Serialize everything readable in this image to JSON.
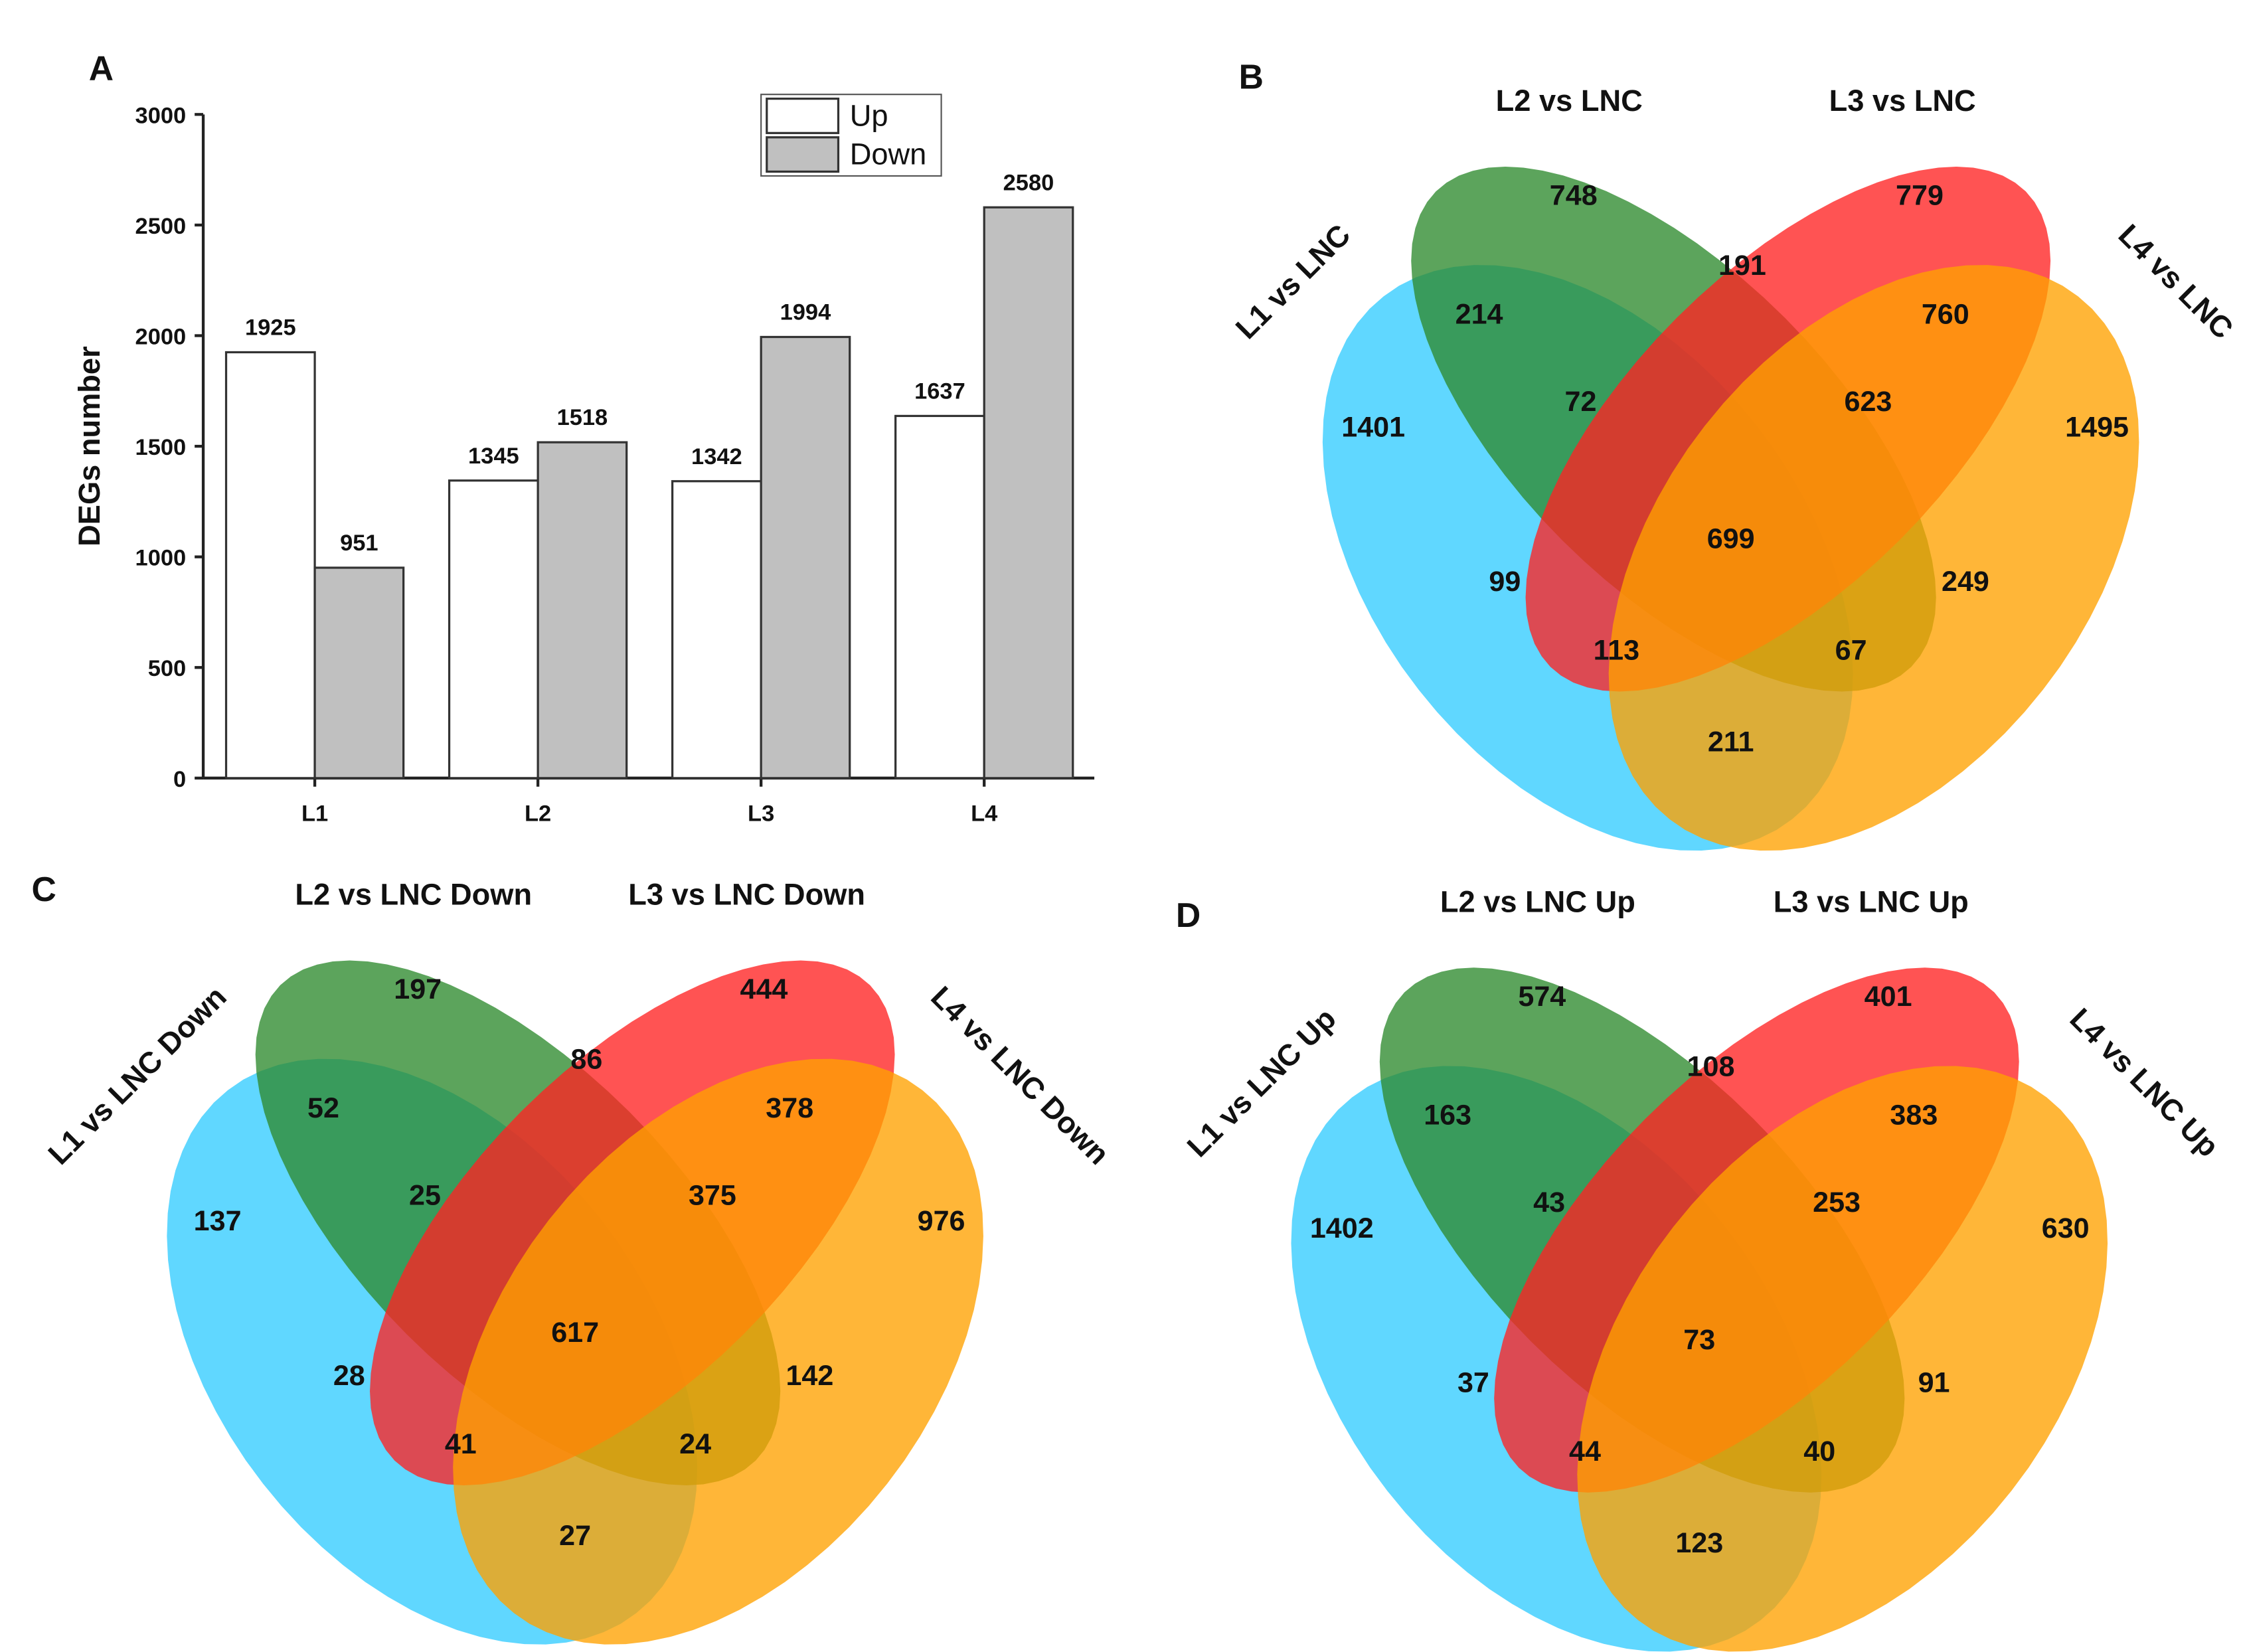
{
  "chart_data": [
    {
      "panel": "A",
      "type": "bar",
      "title": "",
      "xlabel": "",
      "ylabel": "DEGs number",
      "ylim": [
        0,
        3000
      ],
      "yticks": [
        0,
        500,
        1000,
        1500,
        2000,
        2500,
        3000
      ],
      "categories": [
        "L1",
        "L2",
        "L3",
        "L4"
      ],
      "series": [
        {
          "name": "Up",
          "color": "#FFFFFF",
          "values": [
            1925,
            1345,
            1342,
            1637
          ]
        },
        {
          "name": "Down",
          "color": "#C0C0C0",
          "values": [
            951,
            1518,
            1994,
            2580
          ]
        }
      ],
      "legend": "top-right"
    },
    {
      "panel": "B",
      "type": "venn",
      "sets": [
        "L1 vs LNC",
        "L2 vs LNC",
        "L3 vs LNC",
        "L4 vs LNC"
      ],
      "colors": [
        "#33CCFF",
        "#2E8B2E",
        "#FF2222",
        "#FFA200"
      ],
      "regions": {
        "L1": 1401,
        "L2": 748,
        "L3": 779,
        "L4": 1495,
        "L1L2": 214,
        "L2L3": 191,
        "L3L4": 760,
        "L1L2L3": 72,
        "L2L3L4": 623,
        "L1L2L3L4": 699,
        "L1L3": 99,
        "L2L4": 249,
        "L1L3L4": 113,
        "L1L2L4": 67,
        "L1L4": 211
      }
    },
    {
      "panel": "C",
      "type": "venn",
      "sets": [
        "L1 vs LNC Down",
        "L2 vs LNC Down",
        "L3 vs LNC Down",
        "L4 vs LNC Down"
      ],
      "colors": [
        "#33CCFF",
        "#2E8B2E",
        "#FF2222",
        "#FFA200"
      ],
      "regions": {
        "L1": 137,
        "L2": 197,
        "L3": 444,
        "L4": 976,
        "L1L2": 52,
        "L2L3": 86,
        "L3L4": 378,
        "L1L2L3": 25,
        "L2L3L4": 375,
        "L1L2L3L4": 617,
        "L1L3": 28,
        "L2L4": 142,
        "L1L3L4": 41,
        "L1L2L4": 24,
        "L1L4": 27
      }
    },
    {
      "panel": "D",
      "type": "venn",
      "sets": [
        "L1 vs LNC Up",
        "L2 vs LNC Up",
        "L3 vs LNC Up",
        "L4 vs LNC Up"
      ],
      "colors": [
        "#33CCFF",
        "#2E8B2E",
        "#FF2222",
        "#FFA200"
      ],
      "regions": {
        "L1": 1402,
        "L2": 574,
        "L3": 401,
        "L4": 630,
        "L1L2": 163,
        "L2L3": 108,
        "L3L4": 383,
        "L1L2L3": 43,
        "L2L3L4": 253,
        "L1L2L3L4": 73,
        "L1L3": 37,
        "L2L4": 91,
        "L1L3L4": 44,
        "L1L2L4": 40,
        "L1L4": 123
      }
    }
  ]
}
